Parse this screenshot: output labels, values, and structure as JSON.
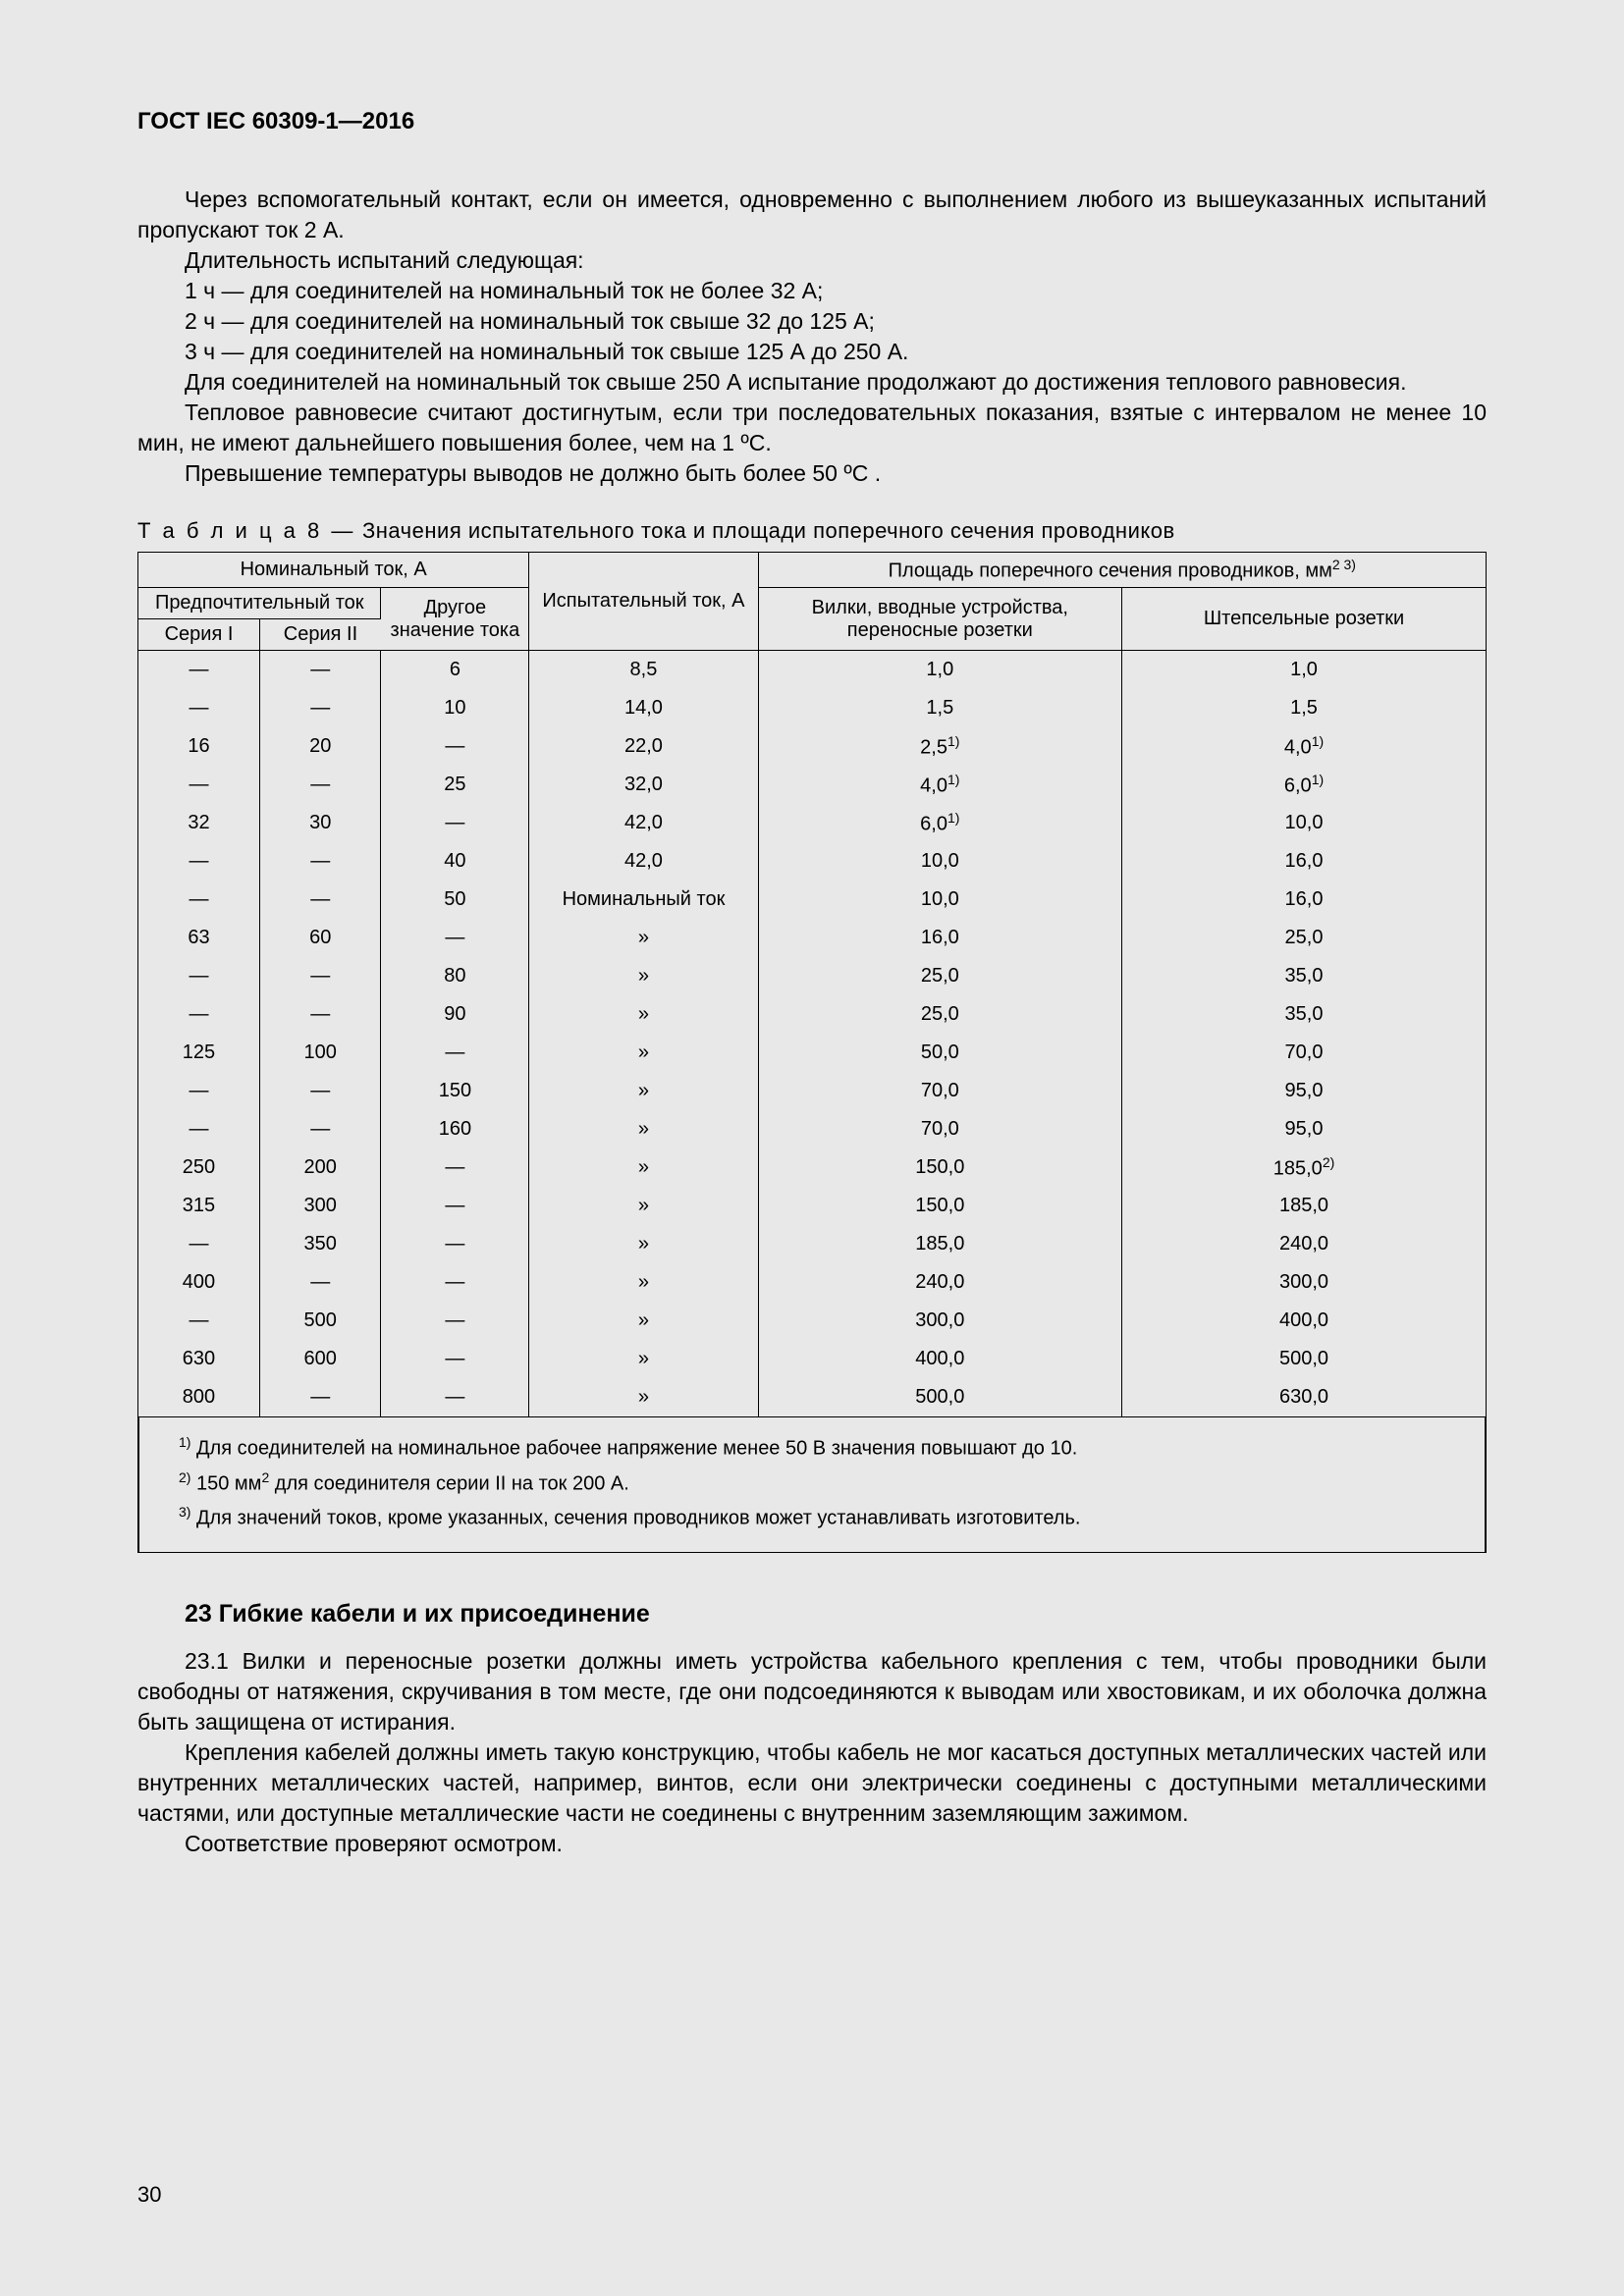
{
  "header": "ГОСТ IEC 60309-1—2016",
  "page_number": "30",
  "paras": {
    "p1": "Через вспомогательный контакт, если он имеется, одновременно с выполнением любого из вышеуказанных испытаний пропускают ток 2 А.",
    "p2": "Длительность испытаний следующая:",
    "p3": "1 ч — для соединителей на номинальный ток не более 32 А;",
    "p4": "2 ч — для соединителей на номинальный ток свыше 32 до 125 А;",
    "p5": "3 ч — для соединителей на номинальный ток свыше 125 А до 250 А.",
    "p6": "Для соединителей на номинальный ток свыше 250 А испытание продолжают до достижения теплового равновесия.",
    "p7": "Тепловое равновесие считают достигнутым, если три последовательных показания, взятые с интервалом не менее 10 мин, не имеют дальнейшего повышения более, чем на 1 ºС.",
    "p8": "Превышение температуры выводов не должно быть более 50 ºС ."
  },
  "table": {
    "caption_prefix": "Т а б л и ц а  8 —",
    "caption_text": " Значения испытательного тока и площади поперечного сечения проводников",
    "head": {
      "nominal": "Номинальный ток, А",
      "pref": "Предпочтительный ток",
      "s1": "Серия I",
      "s2": "Серия II",
      "other": "Другое значение тока",
      "test": "Испытательный ток, А",
      "area_pre": "Площадь поперечного сечения проводников, мм",
      "area_sup": "2 3)",
      "c1": "Вилки, вводные устройства, переносные розетки",
      "c2": "Штепсельные розетки"
    },
    "rows": [
      {
        "s1": "—",
        "s2": "—",
        "ot": "6",
        "tc": "8,5",
        "c1": "1,0",
        "c1s": "",
        "c2": "1,0",
        "c2s": ""
      },
      {
        "s1": "—",
        "s2": "—",
        "ot": "10",
        "tc": "14,0",
        "c1": "1,5",
        "c1s": "",
        "c2": "1,5",
        "c2s": ""
      },
      {
        "s1": "16",
        "s2": "20",
        "ot": "—",
        "tc": "22,0",
        "c1": "2,5",
        "c1s": "1)",
        "c2": "4,0",
        "c2s": "1)"
      },
      {
        "s1": "—",
        "s2": "—",
        "ot": "25",
        "tc": "32,0",
        "c1": "4,0",
        "c1s": "1)",
        "c2": "6,0",
        "c2s": "1)"
      },
      {
        "s1": "32",
        "s2": "30",
        "ot": "—",
        "tc": "42,0",
        "c1": "6,0",
        "c1s": "1)",
        "c2": "10,0",
        "c2s": ""
      },
      {
        "s1": "—",
        "s2": "—",
        "ot": "40",
        "tc": "42,0",
        "c1": "10,0",
        "c1s": "",
        "c2": "16,0",
        "c2s": ""
      },
      {
        "s1": "—",
        "s2": "—",
        "ot": "50",
        "tc": "Номинальный ток",
        "c1": "10,0",
        "c1s": "",
        "c2": "16,0",
        "c2s": ""
      },
      {
        "s1": "63",
        "s2": "60",
        "ot": "—",
        "tc": "»",
        "c1": "16,0",
        "c1s": "",
        "c2": "25,0",
        "c2s": ""
      },
      {
        "s1": "—",
        "s2": "—",
        "ot": "80",
        "tc": "»",
        "c1": "25,0",
        "c1s": "",
        "c2": "35,0",
        "c2s": ""
      },
      {
        "s1": "—",
        "s2": "—",
        "ot": "90",
        "tc": "»",
        "c1": "25,0",
        "c1s": "",
        "c2": "35,0",
        "c2s": ""
      },
      {
        "s1": "125",
        "s2": "100",
        "ot": "—",
        "tc": "»",
        "c1": "50,0",
        "c1s": "",
        "c2": "70,0",
        "c2s": ""
      },
      {
        "s1": "—",
        "s2": "—",
        "ot": "150",
        "tc": "»",
        "c1": "70,0",
        "c1s": "",
        "c2": "95,0",
        "c2s": ""
      },
      {
        "s1": "—",
        "s2": "—",
        "ot": "160",
        "tc": "»",
        "c1": "70,0",
        "c1s": "",
        "c2": "95,0",
        "c2s": ""
      },
      {
        "s1": "250",
        "s2": "200",
        "ot": "—",
        "tc": "»",
        "c1": "150,0",
        "c1s": "",
        "c2": "185,0",
        "c2s": "2)"
      },
      {
        "s1": "315",
        "s2": "300",
        "ot": "—",
        "tc": "»",
        "c1": "150,0",
        "c1s": "",
        "c2": "185,0",
        "c2s": ""
      },
      {
        "s1": "—",
        "s2": "350",
        "ot": "—",
        "tc": "»",
        "c1": "185,0",
        "c1s": "",
        "c2": "240,0",
        "c2s": ""
      },
      {
        "s1": "400",
        "s2": "—",
        "ot": "—",
        "tc": "»",
        "c1": "240,0",
        "c1s": "",
        "c2": "300,0",
        "c2s": ""
      },
      {
        "s1": "—",
        "s2": "500",
        "ot": "—",
        "tc": "»",
        "c1": "300,0",
        "c1s": "",
        "c2": "400,0",
        "c2s": ""
      },
      {
        "s1": "630",
        "s2": "600",
        "ot": "—",
        "tc": "»",
        "c1": "400,0",
        "c1s": "",
        "c2": "500,0",
        "c2s": ""
      },
      {
        "s1": "800",
        "s2": "—",
        "ot": "—",
        "tc": "»",
        "c1": "500,0",
        "c1s": "",
        "c2": "630,0",
        "c2s": ""
      }
    ],
    "footnotes": {
      "f1_sup": "1)",
      "f1": " Для соединителей на номинальное рабочее напряжение менее 50 В значения повышают до 10.",
      "f2_sup": "2)",
      "f2_a": " 150 мм",
      "f2_b": "2",
      "f2_c": " для соединителя серии II на ток 200 А.",
      "f3_sup": "3)",
      "f3": " Для значений токов, кроме указанных, сечения проводников может устанавливать изготовитель."
    }
  },
  "section": {
    "title": "23 Гибкие кабели и их присоединение",
    "p1": "23.1 Вилки и переносные розетки должны иметь устройства кабельного крепления с тем, чтобы проводники были свободны от натяжения, скручивания в том месте, где они подсоединяются к выводам или хвостовикам, и их оболочка должна быть защищена от истирания.",
    "p2": "Крепления кабелей должны иметь такую конструкцию, чтобы кабель не мог касаться доступных металлических частей или внутренних металлических частей, например, винтов, если они электрически соединены с доступными металлическими частями, или доступные металлические части не соединены с внутренним заземляющим зажимом.",
    "p3": "Соответствие проверяют осмотром."
  }
}
